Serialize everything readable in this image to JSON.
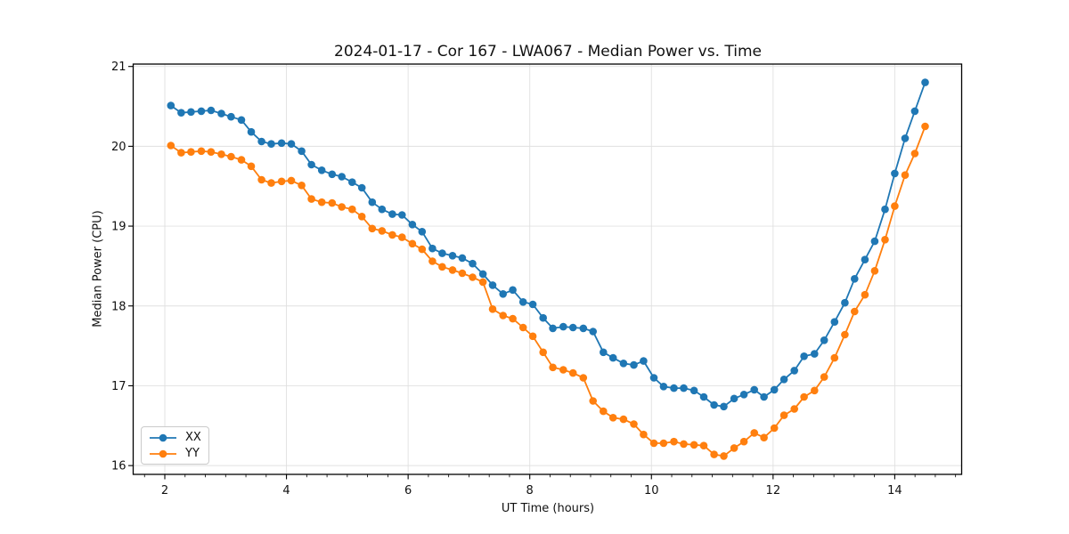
{
  "chart_data": {
    "type": "line",
    "title": "2024-01-17 - Cor 167 - LWA067 - Median Power vs. Time",
    "xlabel": "UT Time (hours)",
    "ylabel": "Median Power (CPU)",
    "xlim": [
      1.48,
      15.1
    ],
    "ylim": [
      15.89,
      21.03
    ],
    "x_ticks": [
      2,
      4,
      6,
      8,
      10,
      12,
      14
    ],
    "y_ticks": [
      16,
      17,
      18,
      19,
      20,
      21
    ],
    "x_minor_tick_step": 0.3333,
    "grid": "major-both",
    "legend_position": "lower-left",
    "x": [
      2.1,
      2.27,
      2.43,
      2.6,
      2.76,
      2.93,
      3.09,
      3.26,
      3.42,
      3.59,
      3.75,
      3.92,
      4.08,
      4.25,
      4.41,
      4.58,
      4.75,
      4.91,
      5.08,
      5.24,
      5.41,
      5.57,
      5.74,
      5.9,
      6.07,
      6.23,
      6.4,
      6.56,
      6.73,
      6.89,
      7.06,
      7.23,
      7.39,
      7.56,
      7.72,
      7.89,
      8.05,
      8.22,
      8.38,
      8.55,
      8.71,
      8.88,
      9.04,
      9.21,
      9.37,
      9.54,
      9.71,
      9.87,
      10.04,
      10.2,
      10.37,
      10.53,
      10.7,
      10.86,
      11.03,
      11.19,
      11.36,
      11.52,
      11.69,
      11.85,
      12.02,
      12.18,
      12.35,
      12.51,
      12.68,
      12.84,
      13.01,
      13.18,
      13.34,
      13.51,
      13.67,
      13.84,
      14.0,
      14.17,
      14.33,
      14.5
    ],
    "series": [
      {
        "name": "XX",
        "color": "#1f77b4",
        "marker": "circle",
        "values": [
          20.51,
          20.42,
          20.43,
          20.44,
          20.45,
          20.41,
          20.37,
          20.33,
          20.18,
          20.06,
          20.03,
          20.04,
          20.03,
          19.94,
          19.77,
          19.7,
          19.65,
          19.62,
          19.55,
          19.48,
          19.3,
          19.21,
          19.15,
          19.14,
          19.02,
          18.93,
          18.72,
          18.66,
          18.63,
          18.6,
          18.53,
          18.4,
          18.26,
          18.15,
          18.2,
          18.05,
          18.02,
          17.85,
          17.72,
          17.74,
          17.73,
          17.72,
          17.68,
          17.42,
          17.35,
          17.28,
          17.26,
          17.31,
          17.1,
          16.99,
          16.97,
          16.97,
          16.94,
          16.86,
          16.76,
          16.74,
          16.84,
          16.89,
          16.95,
          16.86,
          16.95,
          17.08,
          17.19,
          17.37,
          17.4,
          17.57,
          17.8,
          18.04,
          18.34,
          18.58,
          18.81,
          19.21,
          19.66,
          20.1,
          20.44,
          20.8
        ]
      },
      {
        "name": "YY",
        "color": "#ff7f0e",
        "marker": "circle",
        "values": [
          20.01,
          19.92,
          19.93,
          19.94,
          19.93,
          19.9,
          19.87,
          19.83,
          19.75,
          19.58,
          19.54,
          19.56,
          19.57,
          19.51,
          19.34,
          19.3,
          19.29,
          19.24,
          19.21,
          19.12,
          18.97,
          18.94,
          18.89,
          18.86,
          18.78,
          18.71,
          18.56,
          18.49,
          18.45,
          18.41,
          18.36,
          18.3,
          17.96,
          17.88,
          17.84,
          17.73,
          17.62,
          17.42,
          17.23,
          17.2,
          17.16,
          17.1,
          16.81,
          16.68,
          16.6,
          16.58,
          16.52,
          16.39,
          16.28,
          16.28,
          16.3,
          16.27,
          16.26,
          16.25,
          16.14,
          16.12,
          16.22,
          16.3,
          16.41,
          16.35,
          16.47,
          16.63,
          16.71,
          16.86,
          16.94,
          17.11,
          17.35,
          17.64,
          17.93,
          18.14,
          18.44,
          18.83,
          19.25,
          19.64,
          19.91,
          20.25
        ]
      }
    ]
  }
}
